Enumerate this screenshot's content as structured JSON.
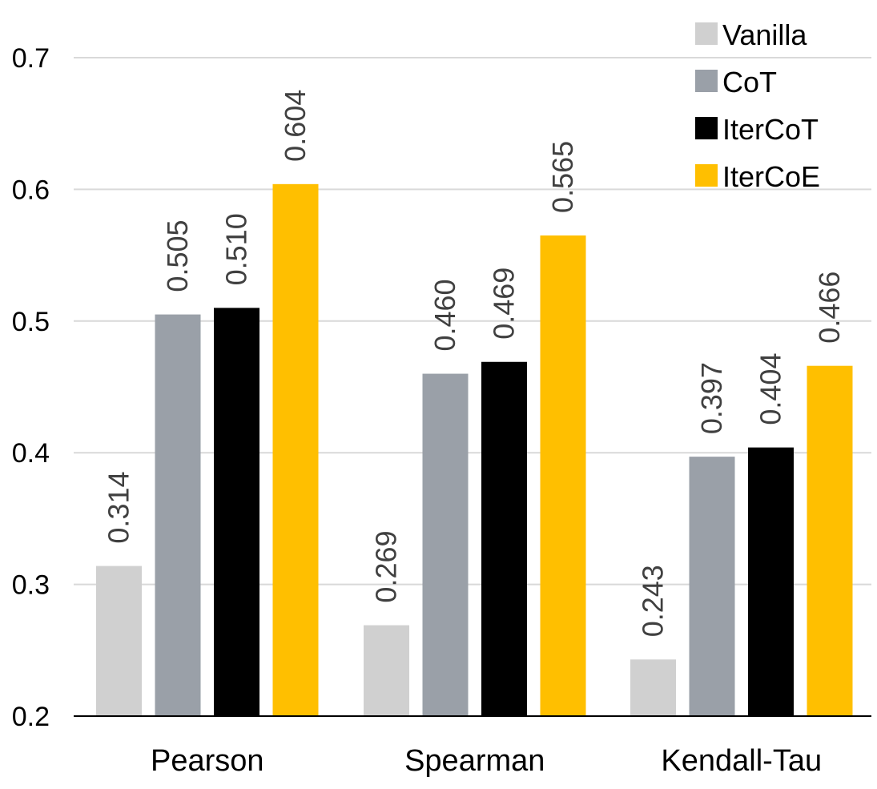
{
  "chart_data": {
    "type": "bar",
    "title": "",
    "xlabel": "",
    "ylabel": "",
    "categories": [
      "Pearson",
      "Spearman",
      "Kendall-Tau"
    ],
    "series": [
      {
        "name": "Vanilla",
        "color": "#d0d0d0",
        "values": [
          0.314,
          0.269,
          0.243
        ],
        "labels": [
          "0.314",
          "0.269",
          "0.243"
        ]
      },
      {
        "name": "CoT",
        "color": "#9aa0a8",
        "values": [
          0.505,
          0.46,
          0.397
        ],
        "labels": [
          "0.505",
          "0.460",
          "0.397"
        ]
      },
      {
        "name": "IterCoT",
        "color": "#000000",
        "values": [
          0.51,
          0.469,
          0.404
        ],
        "labels": [
          "0.510",
          "0.469",
          "0.404"
        ]
      },
      {
        "name": "IterCoE",
        "color": "#ffbf00",
        "values": [
          0.604,
          0.565,
          0.466
        ],
        "labels": [
          "0.604",
          "0.565",
          "0.466"
        ]
      }
    ],
    "ylim": [
      0.2,
      0.7
    ],
    "yticks": [
      0.2,
      0.3,
      0.4,
      0.5,
      0.6,
      0.7
    ],
    "ytick_labels": [
      "0.2",
      "0.3",
      "0.4",
      "0.5",
      "0.6",
      "0.7"
    ],
    "grid": true,
    "legend_position": "top-right"
  }
}
